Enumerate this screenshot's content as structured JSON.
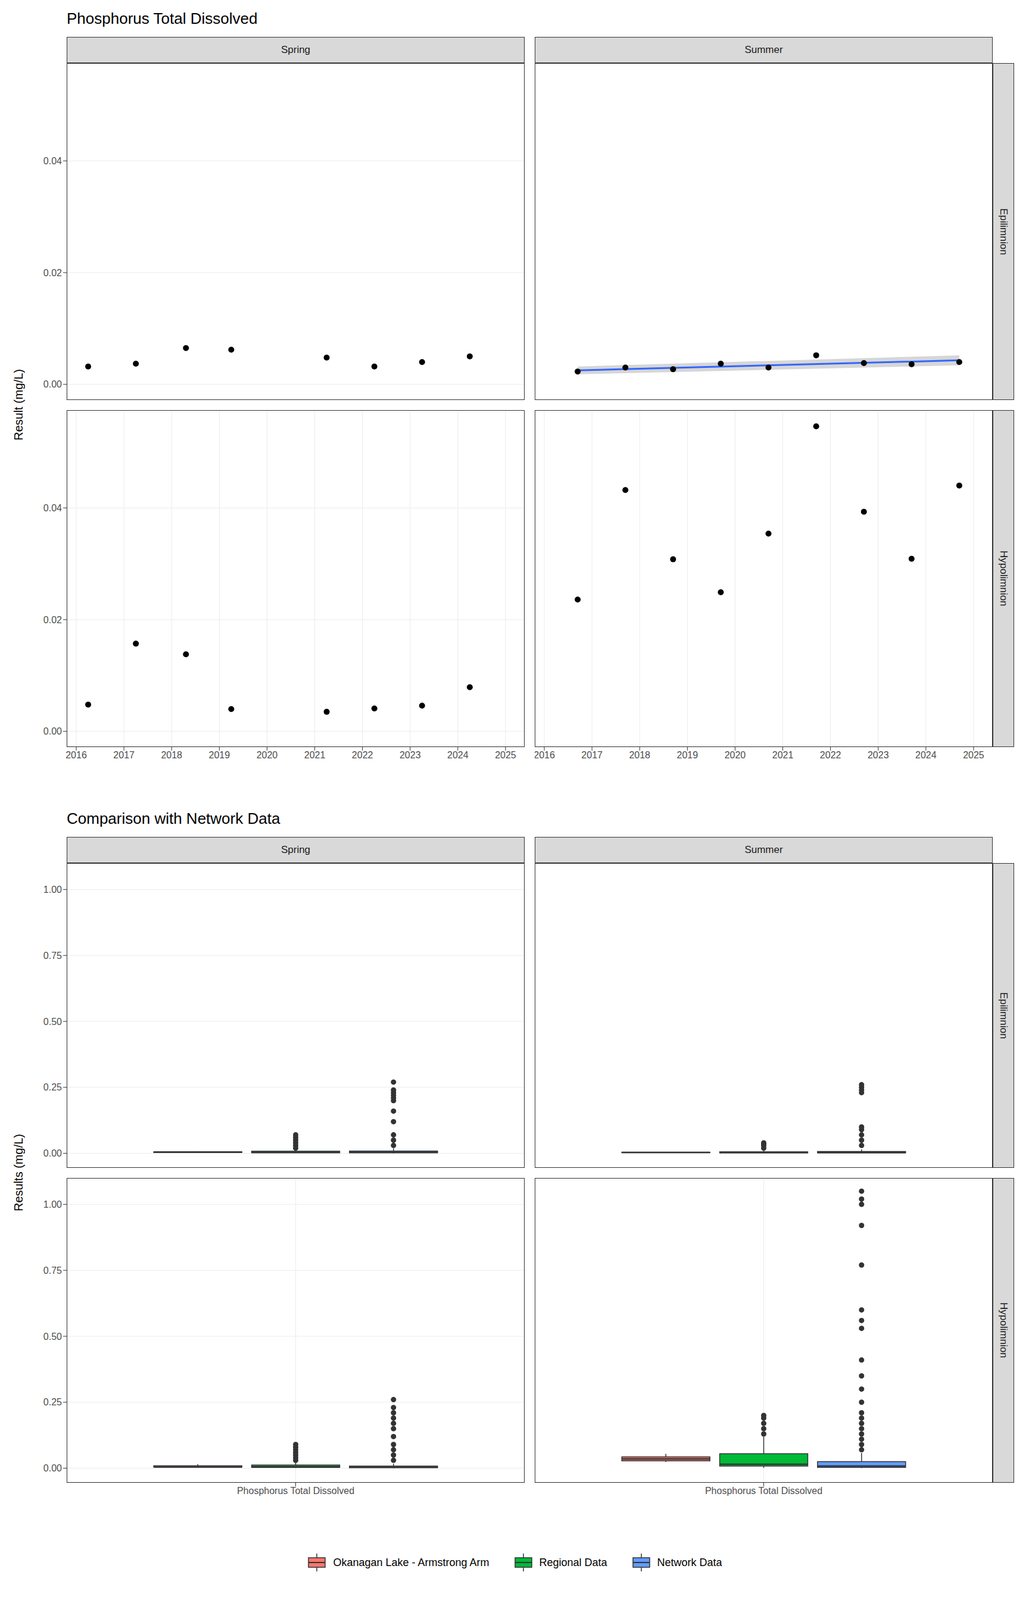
{
  "chart_data": [
    {
      "type": "scatter",
      "title": "Phosphorus Total Dissolved",
      "y_label": "Result (mg/L)",
      "grid": true,
      "xlim": [
        2015.8,
        2025.4
      ],
      "xticks": [
        2016,
        2017,
        2018,
        2019,
        2020,
        2021,
        2022,
        2023,
        2024,
        2025
      ],
      "ylim": [
        -0.0028,
        0.0575
      ],
      "yticks": [
        {
          "value": 0,
          "label": "0.00"
        },
        {
          "value": 0.02,
          "label": "0.02"
        },
        {
          "value": 0.04,
          "label": "0.04"
        }
      ],
      "columns": [
        "Spring",
        "Summer"
      ],
      "rows": [
        "Epilimnion",
        "Hypolimnion"
      ],
      "panels": [
        {
          "column": "Spring",
          "row": "Epilimnion",
          "color": "#000000",
          "x": [
            2016.25,
            2017.25,
            2018.3,
            2019.25,
            2021.25,
            2022.25,
            2023.25,
            2024.25
          ],
          "values": [
            0.0032,
            0.0037,
            0.0065,
            0.0062,
            0.0048,
            0.0032,
            0.004,
            0.005
          ]
        },
        {
          "column": "Summer",
          "row": "Epilimnion",
          "color": "#000000",
          "x": [
            2016.7,
            2017.7,
            2018.7,
            2019.7,
            2020.7,
            2021.7,
            2022.7,
            2023.7,
            2024.7
          ],
          "values": [
            0.0023,
            0.003,
            0.0027,
            0.0037,
            0.003,
            0.0052,
            0.0038,
            0.0036,
            0.004
          ],
          "trend": {
            "x": [
              2016.7,
              2024.7
            ],
            "values": [
              0.0025,
              0.0043
            ],
            "lower": [
              0.0018,
              0.0034
            ],
            "upper": [
              0.0032,
              0.0052
            ],
            "color": "#3366ff"
          }
        },
        {
          "column": "Spring",
          "row": "Hypolimnion",
          "color": "#000000",
          "x": [
            2016.25,
            2017.25,
            2018.3,
            2019.25,
            2021.25,
            2022.25,
            2023.25,
            2024.25
          ],
          "values": [
            0.0048,
            0.0157,
            0.0138,
            0.004,
            0.0035,
            0.0041,
            0.0046,
            0.0079
          ]
        },
        {
          "column": "Summer",
          "row": "Hypolimnion",
          "color": "#000000",
          "x": [
            2016.7,
            2017.7,
            2018.7,
            2019.7,
            2020.7,
            2021.7,
            2022.7,
            2023.7,
            2024.7
          ],
          "values": [
            0.0236,
            0.0432,
            0.0308,
            0.0249,
            0.0354,
            0.0546,
            0.0393,
            0.0309,
            0.044
          ]
        }
      ]
    },
    {
      "type": "box",
      "title": "Comparison with Network Data",
      "y_label": "Results (mg/L)",
      "grid": true,
      "legend": "bottom",
      "categories": [
        "Phosphorus Total Dissolved"
      ],
      "ylim": [
        -0.055,
        1.1
      ],
      "yticks": [
        {
          "value": 0,
          "label": "0.00"
        },
        {
          "value": 0.25,
          "label": "0.25"
        },
        {
          "value": 0.5,
          "label": "0.50"
        },
        {
          "value": 0.75,
          "label": "0.75"
        },
        {
          "value": 1,
          "label": "1.00"
        }
      ],
      "columns": [
        "Spring",
        "Summer"
      ],
      "rows": [
        "Epilimnion",
        "Hypolimnion"
      ],
      "series": [
        {
          "name": "Okanagan Lake - Armstrong Arm",
          "color": "#F8766D"
        },
        {
          "name": "Regional Data",
          "color": "#00BA38"
        },
        {
          "name": "Network Data",
          "color": "#619CFF"
        }
      ],
      "panels": [
        {
          "column": "Spring",
          "row": "Epilimnion",
          "boxes": [
            {
              "min": 0.003,
              "q1": 0.003,
              "median": 0.004,
              "q3": 0.006,
              "max": 0.0065,
              "outliers": []
            },
            {
              "min": 0.001,
              "q1": 0.002,
              "median": 0.004,
              "q3": 0.008,
              "max": 0.016,
              "outliers": [
                0.02,
                0.03,
                0.04,
                0.05,
                0.06,
                0.07
              ]
            },
            {
              "min": 0,
              "q1": 0.002,
              "median": 0.004,
              "q3": 0.009,
              "max": 0.019,
              "outliers": [
                0.03,
                0.05,
                0.07,
                0.12,
                0.16,
                0.2,
                0.21,
                0.22,
                0.23,
                0.24,
                0.27
              ]
            }
          ]
        },
        {
          "column": "Summer",
          "row": "Epilimnion",
          "boxes": [
            {
              "min": 0.0023,
              "q1": 0.0028,
              "median": 0.0035,
              "q3": 0.004,
              "max": 0.0052,
              "outliers": []
            },
            {
              "min": 0.001,
              "q1": 0.002,
              "median": 0.003,
              "q3": 0.006,
              "max": 0.012,
              "outliers": [
                0.02,
                0.03,
                0.035,
                0.04
              ]
            },
            {
              "min": 0.001,
              "q1": 0.002,
              "median": 0.003,
              "q3": 0.007,
              "max": 0.015,
              "outliers": [
                0.03,
                0.05,
                0.07,
                0.09,
                0.1,
                0.23,
                0.24,
                0.25,
                0.26
              ]
            }
          ]
        },
        {
          "column": "Spring",
          "row": "Hypolimnion",
          "boxes": [
            {
              "min": 0.0035,
              "q1": 0.004,
              "median": 0.0047,
              "q3": 0.0095,
              "max": 0.0157,
              "outliers": []
            },
            {
              "min": 0.001,
              "q1": 0.003,
              "median": 0.006,
              "q3": 0.012,
              "max": 0.025,
              "outliers": [
                0.03,
                0.04,
                0.05,
                0.06,
                0.07,
                0.08,
                0.09
              ]
            },
            {
              "min": 0,
              "q1": 0.002,
              "median": 0.004,
              "q3": 0.008,
              "max": 0.017,
              "outliers": [
                0.03,
                0.05,
                0.07,
                0.09,
                0.12,
                0.15,
                0.17,
                0.19,
                0.21,
                0.23,
                0.26
              ]
            }
          ]
        },
        {
          "column": "Summer",
          "row": "Hypolimnion",
          "boxes": [
            {
              "min": 0.0236,
              "q1": 0.0279,
              "median": 0.0354,
              "q3": 0.0432,
              "max": 0.0546,
              "outliers": []
            },
            {
              "min": 0.001,
              "q1": 0.008,
              "median": 0.015,
              "q3": 0.055,
              "max": 0.12,
              "outliers": [
                0.13,
                0.15,
                0.17,
                0.19,
                0.2
              ]
            },
            {
              "min": 0,
              "q1": 0.003,
              "median": 0.008,
              "q3": 0.025,
              "max": 0.058,
              "outliers": [
                0.07,
                0.09,
                0.11,
                0.13,
                0.15,
                0.17,
                0.19,
                0.21,
                0.25,
                0.3,
                0.35,
                0.41,
                0.53,
                0.56,
                0.6,
                0.77,
                0.92,
                1.0,
                1.02,
                1.05
              ]
            }
          ]
        }
      ]
    }
  ]
}
